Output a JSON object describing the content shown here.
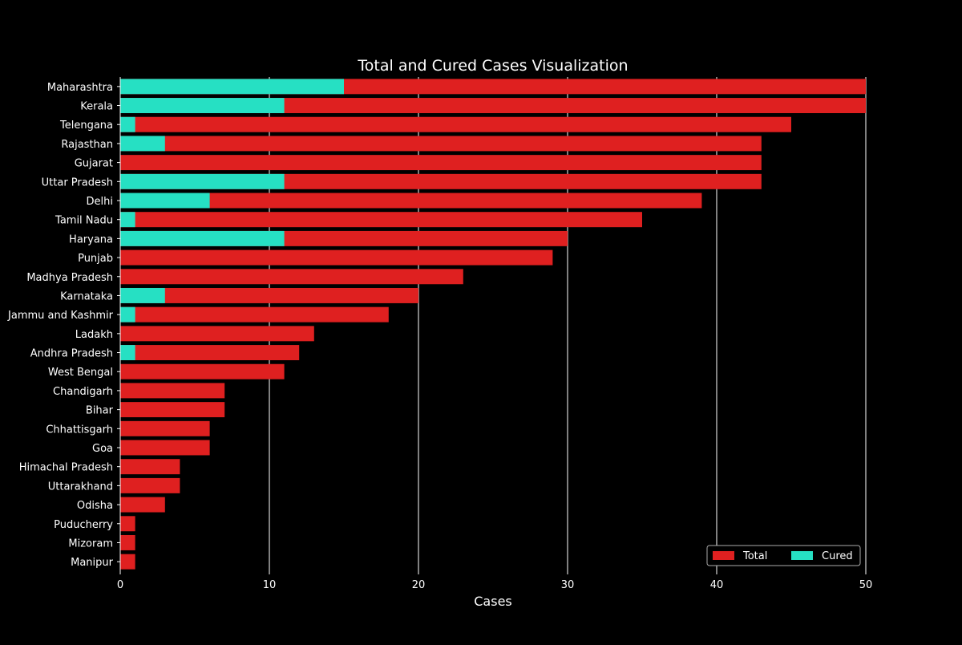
{
  "chart_data": {
    "type": "bar",
    "orientation": "horizontal",
    "stacking": "overlay",
    "title": "Total and Cured Cases Visualization",
    "xlabel": "Cases",
    "ylabel": "",
    "xlim": [
      0,
      50
    ],
    "xticks": [
      0,
      10,
      20,
      30,
      40,
      50
    ],
    "grid": "x",
    "legend_position": "bottom-right",
    "categories": [
      "Maharashtra",
      "Kerala",
      "Telengana",
      "Rajasthan",
      "Gujarat",
      "Uttar Pradesh",
      "Delhi",
      "Tamil Nadu",
      "Haryana",
      "Punjab",
      "Madhya Pradesh",
      "Karnataka",
      "Jammu and Kashmir",
      "Ladakh",
      "Andhra Pradesh",
      "West Bengal",
      "Chandigarh",
      "Bihar",
      "Chhattisgarh",
      "Goa",
      "Himachal Pradesh",
      "Uttarakhand",
      "Odisha",
      "Puducherry",
      "Mizoram",
      "Manipur"
    ],
    "series": [
      {
        "name": "Total",
        "color": "#df2020",
        "values": [
          50,
          50,
          45,
          43,
          43,
          43,
          39,
          35,
          30,
          29,
          23,
          20,
          18,
          13,
          12,
          11,
          7,
          7,
          6,
          6,
          4,
          4,
          3,
          1,
          1,
          1
        ]
      },
      {
        "name": "Cured",
        "color": "#26e0c3",
        "values": [
          15,
          11,
          1,
          3,
          0,
          11,
          6,
          1,
          11,
          0,
          0,
          3,
          1,
          0,
          1,
          0,
          0,
          0,
          0,
          0,
          0,
          0,
          0,
          0,
          0,
          0
        ]
      }
    ]
  }
}
